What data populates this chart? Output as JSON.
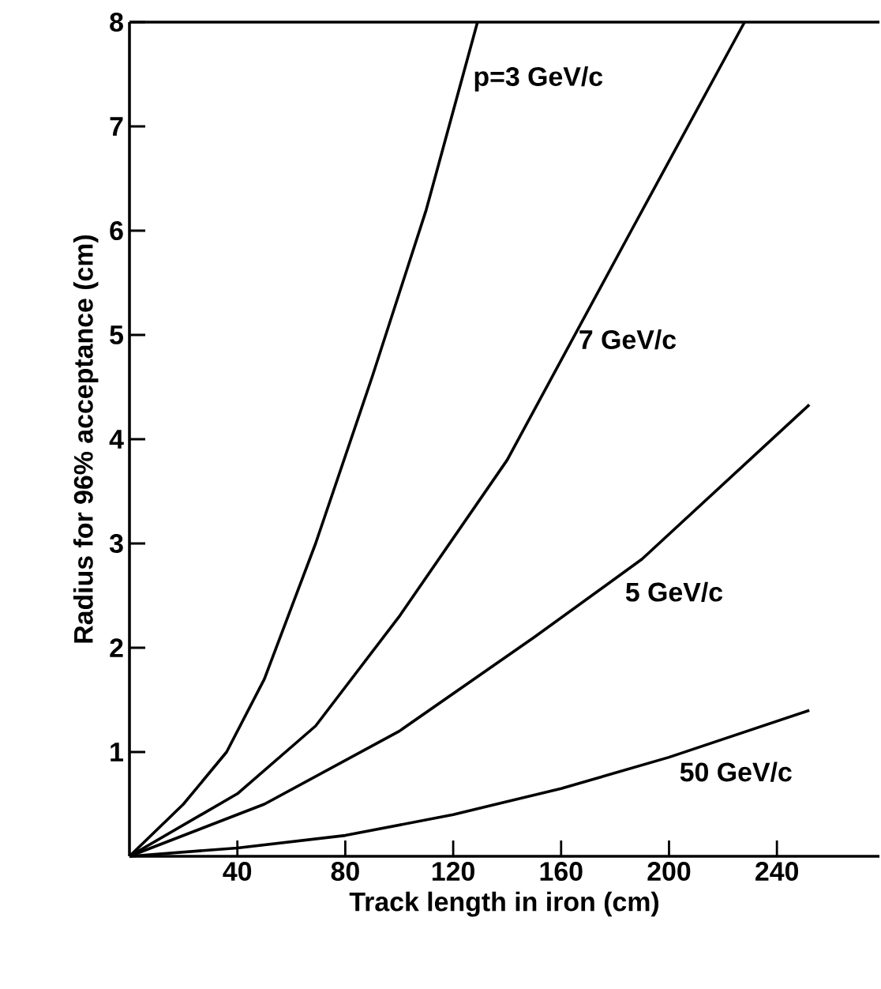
{
  "chart_data": {
    "type": "line",
    "xlabel": "Track length in iron (cm)",
    "ylabel": "Radius for 96% acceptance (cm)",
    "xlim": [
      0,
      278
    ],
    "ylim": [
      0,
      8
    ],
    "xticks": [
      40,
      80,
      120,
      160,
      200,
      240
    ],
    "yticks": [
      1,
      2,
      3,
      4,
      5,
      6,
      7,
      8
    ],
    "grid": false,
    "legend": false,
    "marker": "none",
    "line_style": "solid",
    "series": [
      {
        "name": "p=3 GeV/c",
        "color": "#000000",
        "x": [
          0,
          20,
          36,
          50,
          69,
          90,
          110,
          129
        ],
        "values": [
          0,
          0.5,
          1,
          1.7,
          3,
          4.6,
          6.2,
          8
        ]
      },
      {
        "name": "7 GeV/c",
        "color": "#000000",
        "x": [
          0,
          40,
          69,
          100,
          140,
          186,
          228
        ],
        "values": [
          0,
          0.6,
          1.25,
          2.3,
          3.8,
          6,
          8
        ]
      },
      {
        "name": "5 GeV/c",
        "color": "#000000",
        "x": [
          0,
          50,
          100,
          150,
          190,
          252
        ],
        "values": [
          0,
          0.5,
          1.2,
          2.1,
          2.85,
          4.33
        ]
      },
      {
        "name": "50 GeV/c",
        "color": "#000000",
        "x": [
          0,
          40,
          80,
          120,
          160,
          200,
          252
        ],
        "values": [
          0,
          0.08,
          0.2,
          0.4,
          0.65,
          0.95,
          1.4
        ]
      }
    ]
  }
}
